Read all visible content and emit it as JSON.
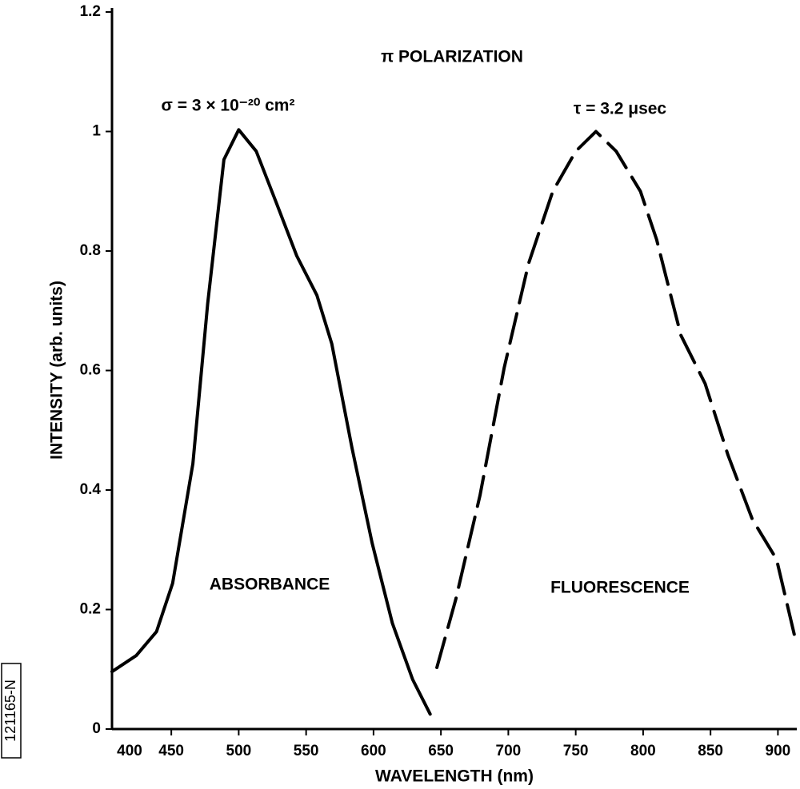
{
  "chart_data": {
    "type": "line",
    "title": "π POLARIZATION",
    "x_label": "WAVELENGTH (nm)",
    "y_label": "INTENSITY (arb. units)",
    "annotations": [
      "σ = 3 × 10⁻²⁰ cm²",
      "τ = 3.2 μsec",
      "121165-N"
    ],
    "xlim": [
      406,
      914
    ],
    "ylim": [
      0,
      1.2
    ],
    "xticks": [
      400,
      450,
      500,
      550,
      600,
      650,
      700,
      750,
      800,
      850,
      900
    ],
    "yticks": [
      0,
      0.2,
      0.4,
      0.6,
      0.8,
      1,
      1.2
    ],
    "grid": false,
    "series": [
      {
        "name": "ABSORBANCE",
        "color": "#000000",
        "dash": "solid",
        "x": [
          406,
          424,
          439,
          451,
          466,
          477,
          489,
          500,
          513,
          528,
          543,
          558,
          569,
          584,
          599,
          614,
          629,
          642
        ],
        "values": [
          0.096,
          0.123,
          0.163,
          0.244,
          0.444,
          0.712,
          0.953,
          1.003,
          0.967,
          0.88,
          0.792,
          0.726,
          0.645,
          0.471,
          0.311,
          0.177,
          0.083,
          0.025
        ]
      },
      {
        "name": "FLUORESCENCE",
        "color": "#000000",
        "dash": "dashed",
        "x": [
          647,
          661,
          679,
          697,
          715,
          733,
          750,
          765,
          780,
          798,
          810,
          828,
          846,
          863,
          881,
          899,
          913
        ],
        "values": [
          0.103,
          0.217,
          0.391,
          0.605,
          0.779,
          0.9,
          0.967,
          1.0,
          0.967,
          0.9,
          0.819,
          0.659,
          0.578,
          0.458,
          0.351,
          0.284,
          0.15
        ]
      }
    ]
  }
}
